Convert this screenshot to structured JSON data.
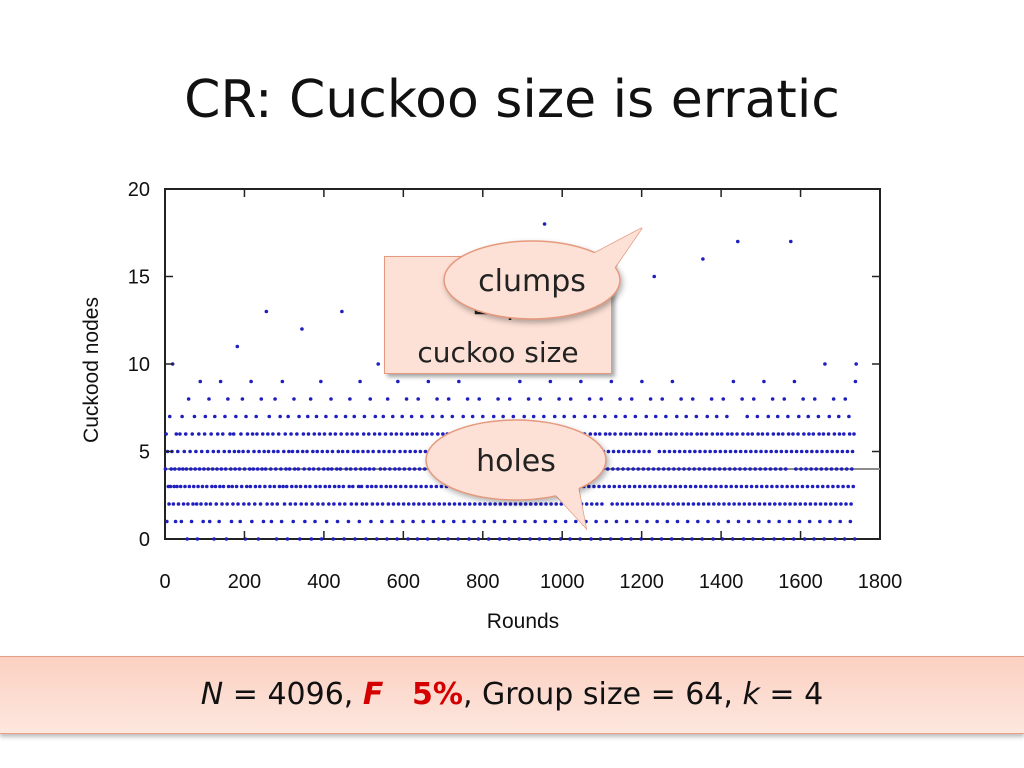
{
  "title": "CR: Cuckoo size is erratic",
  "callout": {
    "line1": "Exp",
    "line2": "cuckoo size"
  },
  "bubbles": {
    "clumps": "clumps",
    "holes": "holes"
  },
  "footer": {
    "n_label": "N",
    "n_value": " = 4096, ",
    "f_label": "F",
    "f_value": "5%",
    "group": ", Group size = 64, ",
    "k_label": "k",
    "k_value": " = 4"
  },
  "colors": {
    "points": "#1f1fbf",
    "mean_line": "#8c8c8c",
    "callout_fill": "#fde1d6",
    "callout_border": "#e59a7e"
  },
  "chart_data": {
    "type": "scatter",
    "xlabel": "Rounds",
    "ylabel": "Cuckood nodes",
    "xlim": [
      0,
      1800
    ],
    "ylim": [
      0,
      20
    ],
    "xticks": [
      0,
      200,
      400,
      600,
      800,
      1000,
      1200,
      1400,
      1600,
      1800
    ],
    "yticks": [
      0,
      5,
      10,
      15,
      20
    ],
    "reference_line_y": 4,
    "point_rounds": [
      1,
      1740
    ],
    "series": [
      {
        "values": [
          4,
          6,
          1,
          5,
          3,
          2,
          7,
          3,
          4,
          5,
          10,
          2,
          3,
          4,
          1,
          6,
          3,
          5,
          2,
          4,
          6,
          3,
          1,
          7,
          4,
          2,
          5,
          3,
          6,
          4,
          0,
          2,
          8,
          3,
          5,
          4,
          1,
          6,
          2,
          3,
          7,
          4,
          5,
          2,
          0,
          3,
          6,
          4,
          9,
          2,
          5,
          3,
          1,
          4,
          6,
          7,
          2,
          3,
          5,
          4,
          8,
          1,
          2,
          6,
          3,
          4,
          5,
          0,
          7,
          3,
          2,
          4,
          6,
          5,
          1,
          3,
          9,
          4,
          2,
          6,
          3,
          5,
          7,
          4,
          0,
          2,
          8,
          3,
          5,
          6,
          4,
          1,
          3,
          2,
          6,
          5,
          4,
          7,
          3,
          11,
          2,
          5,
          4,
          1,
          6,
          3,
          8,
          5,
          2,
          4,
          0,
          7,
          3,
          6,
          5,
          2,
          4,
          3,
          9,
          1,
          6,
          4,
          5,
          2,
          3,
          7,
          6,
          4,
          0,
          5,
          3,
          2,
          8,
          4,
          6,
          1,
          5,
          3,
          4,
          13,
          2,
          6,
          5,
          7,
          3,
          4,
          1,
          2,
          6,
          5,
          3,
          8,
          4,
          0,
          2,
          5,
          6,
          3,
          7,
          4,
          1,
          9,
          3,
          5,
          2,
          6,
          4,
          3,
          0,
          7,
          5,
          4,
          2,
          6,
          3,
          5,
          1,
          8,
          4,
          2,
          3,
          6,
          5,
          4,
          7,
          0,
          3,
          2,
          12,
          5,
          6,
          4,
          1,
          3,
          2,
          5,
          7,
          6,
          4,
          3,
          8,
          0,
          2,
          5,
          4,
          6,
          1,
          3,
          7,
          5,
          2,
          4,
          6,
          3,
          9,
          0,
          5,
          2,
          4,
          6,
          3,
          7,
          1,
          5,
          4,
          2,
          3,
          6,
          8,
          4,
          5,
          0,
          2,
          3,
          6,
          7,
          4,
          1,
          5,
          3,
          2,
          4,
          6,
          13,
          5,
          3,
          0,
          2,
          7,
          4,
          6,
          5,
          1,
          3,
          8,
          4,
          2,
          6,
          3,
          5,
          7,
          0,
          4,
          2,
          6,
          5,
          3,
          1,
          9,
          4,
          3,
          2,
          5,
          6,
          7,
          4,
          0,
          2,
          3,
          5,
          6,
          4,
          8,
          1,
          3,
          2,
          5,
          4,
          6,
          7,
          3,
          0,
          2,
          10,
          5,
          6,
          4,
          3,
          1,
          2,
          7,
          5,
          4,
          6,
          3,
          0,
          8,
          2,
          5,
          4,
          3,
          6,
          1,
          7,
          2,
          5,
          4,
          3,
          6,
          0,
          9,
          2,
          4,
          5,
          3,
          6,
          7,
          1,
          2,
          4,
          5,
          3,
          8,
          6,
          0,
          2,
          4,
          5,
          3,
          7,
          6,
          1,
          2,
          4,
          5,
          3,
          6,
          0,
          8,
          2,
          4,
          5,
          3,
          7,
          6,
          1,
          2,
          4,
          5,
          3,
          6,
          0,
          9,
          2,
          4,
          5,
          3,
          6,
          7,
          1,
          2,
          4,
          5,
          3,
          8,
          6,
          0,
          2,
          4,
          5,
          3,
          7,
          6,
          1,
          2,
          4,
          5,
          3,
          6,
          0,
          8,
          2,
          4,
          5,
          3,
          7,
          6,
          1,
          2,
          4,
          5,
          3,
          6,
          0,
          9,
          2,
          4,
          5,
          3,
          6,
          7,
          1,
          2,
          4,
          5,
          3,
          8,
          6,
          0,
          2,
          4,
          5,
          3,
          7,
          6,
          1,
          2,
          4,
          5,
          3,
          6,
          0,
          8,
          2,
          4,
          5,
          3,
          7,
          6,
          1,
          2,
          4,
          5,
          3,
          6,
          0,
          10,
          2,
          4,
          5,
          3,
          6,
          7,
          1,
          2,
          4,
          5,
          3,
          8,
          6,
          0,
          2,
          4,
          5,
          3,
          7,
          6,
          1,
          2,
          4,
          5,
          3,
          6,
          0,
          8,
          2,
          4,
          5,
          3,
          7,
          6,
          1,
          2,
          4,
          5,
          3,
          6,
          0,
          9,
          2,
          4,
          5,
          3,
          6,
          7,
          1,
          2,
          4,
          5,
          3,
          8,
          6,
          0,
          2,
          4,
          5,
          3,
          7,
          6,
          1,
          2,
          4,
          5,
          3,
          6,
          0,
          8,
          2,
          4,
          5,
          3,
          7,
          18,
          1,
          2,
          4,
          5,
          3,
          6,
          0,
          9,
          2,
          4,
          5,
          3,
          6,
          7,
          1,
          2,
          4,
          5,
          3,
          8,
          6,
          0,
          2,
          4,
          14,
          3,
          7,
          6,
          1,
          2,
          4,
          5,
          3,
          6,
          0,
          8,
          2,
          4,
          5,
          3,
          7,
          6,
          1,
          2,
          4,
          5,
          3,
          6,
          0,
          9,
          2,
          4,
          5,
          3,
          6,
          7,
          1,
          2,
          4,
          5,
          3,
          8,
          6,
          0,
          2,
          4,
          5,
          3,
          7,
          6,
          1,
          2,
          4,
          5,
          3,
          6,
          0,
          8,
          2,
          4,
          5,
          3,
          7,
          6,
          1,
          12,
          4,
          5,
          3,
          6,
          0,
          9,
          2,
          4,
          5,
          3,
          6,
          7,
          1,
          2,
          4,
          5,
          3,
          8,
          6,
          0,
          2,
          4,
          5,
          3,
          7,
          6,
          1,
          2,
          4,
          5,
          3,
          6,
          0,
          8,
          2,
          4,
          5,
          3,
          7,
          6,
          1,
          2,
          4,
          5,
          3,
          6,
          0,
          9,
          2,
          4,
          5,
          3,
          6,
          7,
          1,
          2,
          4,
          5,
          3,
          8,
          6,
          0,
          2,
          4,
          15,
          3,
          7,
          6,
          1,
          2,
          4,
          5,
          3,
          6,
          0,
          8,
          2,
          4,
          5,
          3,
          7,
          6,
          1,
          2,
          4,
          5,
          3,
          6,
          0,
          9,
          2,
          4,
          5,
          3,
          6,
          7,
          1,
          2,
          4,
          5,
          3,
          8,
          6,
          0,
          2,
          4,
          5,
          3,
          7,
          6,
          1,
          2,
          4,
          5,
          3,
          6,
          0,
          8,
          2,
          4,
          5,
          3,
          7,
          6,
          1,
          2,
          4,
          5,
          3,
          6,
          0,
          16,
          2,
          4,
          5,
          3,
          6,
          7,
          1,
          2,
          4,
          5,
          3,
          8,
          6,
          0,
          2,
          4,
          5,
          3,
          7,
          6,
          1,
          2,
          4,
          5,
          3,
          6,
          0,
          8,
          2,
          4,
          5,
          3,
          7,
          6,
          1,
          2,
          4,
          5,
          3,
          6,
          0,
          9,
          2,
          4,
          5,
          3,
          6,
          17,
          1,
          2,
          4,
          5,
          3,
          8,
          6,
          0,
          2,
          4,
          5,
          3,
          7,
          6,
          1,
          2,
          4,
          5,
          3,
          6,
          0,
          8,
          2,
          4,
          5,
          3,
          7,
          6,
          1,
          2,
          4,
          5,
          3,
          6,
          0,
          9,
          2,
          4,
          5,
          3,
          6,
          7,
          1,
          2,
          4,
          5,
          3,
          8,
          6,
          0,
          2,
          4,
          5,
          3,
          7,
          6,
          1,
          2,
          4,
          5,
          3,
          6,
          0,
          8,
          2,
          4,
          5,
          3,
          7,
          6,
          1,
          2,
          17,
          5,
          3,
          6,
          0,
          9,
          2,
          4,
          5,
          3,
          6,
          7,
          1,
          2,
          4,
          5,
          3,
          8,
          6,
          0,
          2,
          4,
          5,
          3,
          7,
          6,
          1,
          2,
          4,
          5,
          3,
          6,
          0,
          8,
          2,
          4,
          5,
          3,
          7,
          6,
          1,
          2,
          4,
          5,
          3,
          6,
          0,
          10,
          2,
          4,
          5,
          3,
          6,
          7,
          1,
          2,
          4,
          5,
          3,
          8,
          6,
          0,
          2,
          4,
          5,
          3,
          7,
          6,
          1,
          2,
          4,
          5,
          3,
          6,
          0,
          8,
          2,
          4,
          5,
          3,
          7,
          6,
          1,
          2,
          4,
          5,
          3,
          6,
          0,
          9,
          10
        ]
      }
    ]
  }
}
